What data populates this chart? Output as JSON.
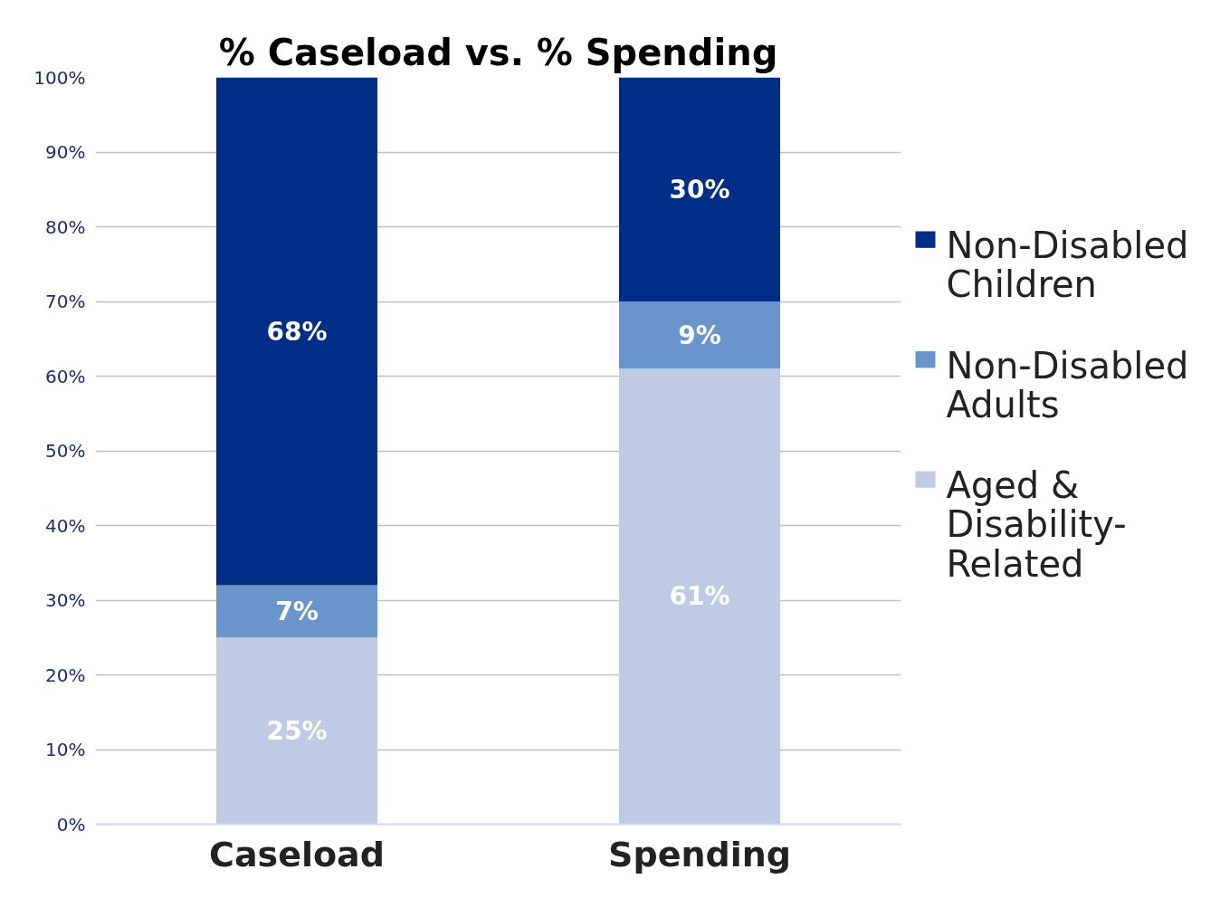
{
  "chart_data": {
    "type": "bar",
    "stacked": true,
    "title": "% Caseload vs. % Spending",
    "categories": [
      "Caseload",
      "Spending"
    ],
    "series": [
      {
        "name": "Aged & Disability-Related",
        "color": "#bfcbe5",
        "values": [
          25,
          61
        ],
        "value_labels": [
          "25%",
          "61%"
        ]
      },
      {
        "name": "Non-Disabled Adults",
        "color": "#6995cc",
        "values": [
          7,
          9
        ],
        "value_labels": [
          "7%",
          "9%"
        ]
      },
      {
        "name": "Non-Disabled Children",
        "color": "#002d86",
        "values": [
          68,
          30
        ],
        "value_labels": [
          "68%",
          "30%"
        ]
      }
    ],
    "ylim": [
      0,
      100
    ],
    "yticks": [
      {
        "value": 0,
        "label": "0%"
      },
      {
        "value": 10,
        "label": "10%"
      },
      {
        "value": 20,
        "label": "20%"
      },
      {
        "value": 30,
        "label": "30%"
      },
      {
        "value": 40,
        "label": "40%"
      },
      {
        "value": 50,
        "label": "50%"
      },
      {
        "value": 60,
        "label": "60%"
      },
      {
        "value": 70,
        "label": "70%"
      },
      {
        "value": 80,
        "label": "80%"
      },
      {
        "value": 90,
        "label": "90%"
      },
      {
        "value": 100,
        "label": "100%"
      }
    ],
    "grid": "y",
    "legend": "right"
  }
}
